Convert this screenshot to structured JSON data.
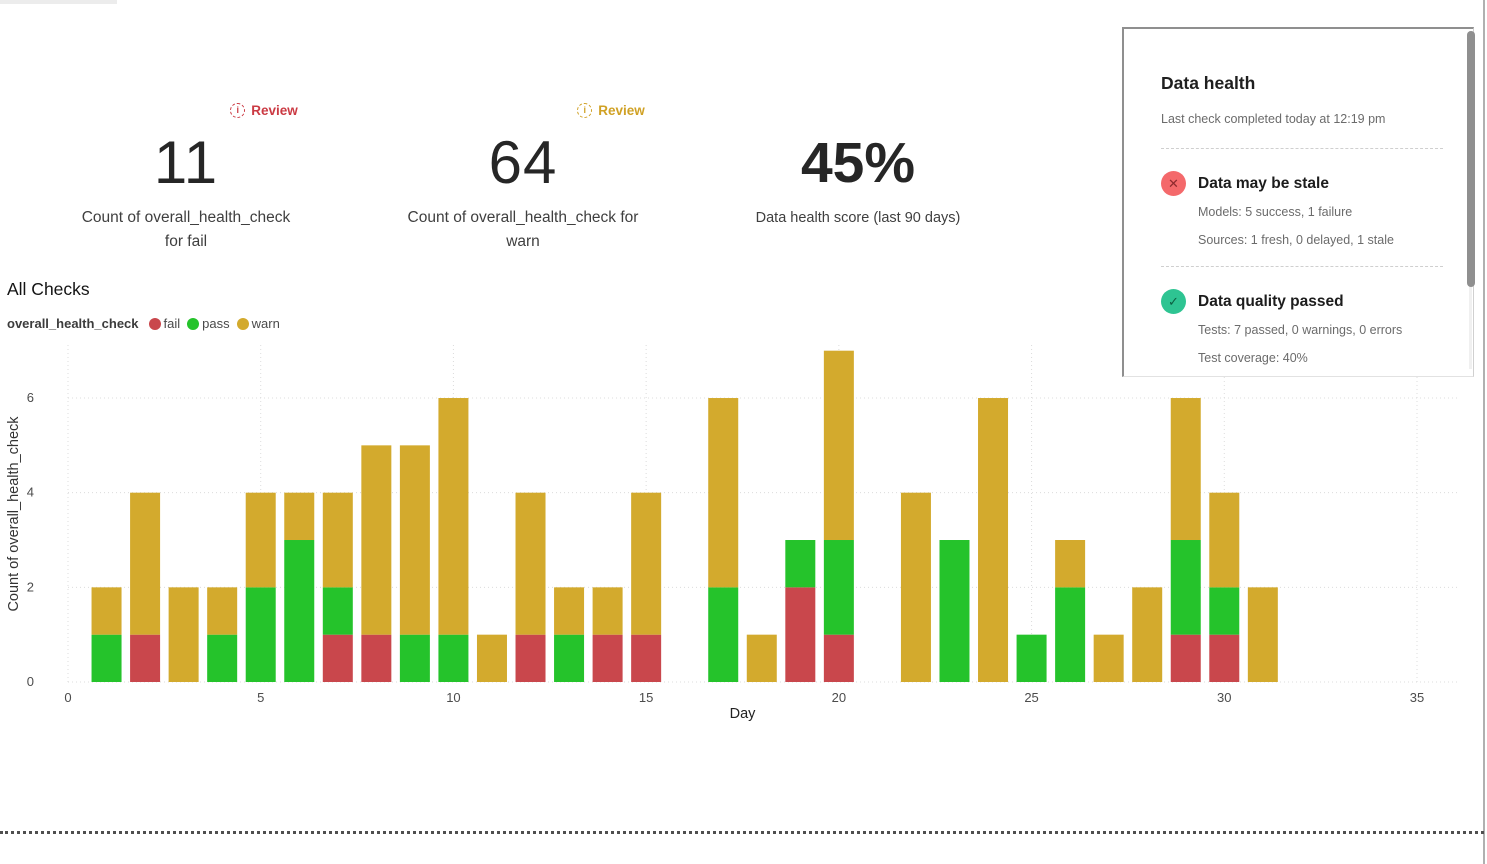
{
  "metrics": [
    {
      "badge": {
        "label": "Review",
        "color": "#cb3a43"
      },
      "value": "11",
      "label_lines": [
        "Count of overall_health_check",
        "for fail"
      ]
    },
    {
      "badge": {
        "label": "Review",
        "color": "#d0a125"
      },
      "value": "64",
      "label_lines": [
        "Count of overall_health_check for",
        "warn"
      ]
    },
    {
      "badge": null,
      "value": "45%",
      "label_lines": [
        "Data health score (last 90 days)"
      ]
    }
  ],
  "section_title": "All Checks",
  "legend": {
    "title": "overall_health_check",
    "items": [
      {
        "label": "fail",
        "color": "#c9474c"
      },
      {
        "label": "pass",
        "color": "#25c32b"
      },
      {
        "label": "warn",
        "color": "#d3aa2d"
      }
    ]
  },
  "chart_data": {
    "type": "bar",
    "stacked": true,
    "title": "All Checks",
    "xlabel": "Day",
    "ylabel": "Count of overall_health_check",
    "xlim": [
      0,
      35
    ],
    "ylim": [
      0,
      7
    ],
    "xticks": [
      0,
      5,
      10,
      15,
      20,
      25,
      30,
      35
    ],
    "yticks": [
      0,
      2,
      4,
      6
    ],
    "grid": "dotted",
    "legend_position": "top-left",
    "series_order": [
      "fail",
      "pass",
      "warn"
    ],
    "colors": {
      "fail": "#c9474c",
      "pass": "#25c32b",
      "warn": "#d3aa2d"
    },
    "bars": [
      {
        "day": 1,
        "fail": 0,
        "pass": 1,
        "warn": 1
      },
      {
        "day": 2,
        "fail": 1,
        "pass": 0,
        "warn": 3
      },
      {
        "day": 3,
        "fail": 0,
        "pass": 0,
        "warn": 2
      },
      {
        "day": 4,
        "fail": 0,
        "pass": 1,
        "warn": 1
      },
      {
        "day": 5,
        "fail": 0,
        "pass": 2,
        "warn": 2
      },
      {
        "day": 6,
        "fail": 0,
        "pass": 3,
        "warn": 1
      },
      {
        "day": 7,
        "fail": 1,
        "pass": 1,
        "warn": 2
      },
      {
        "day": 8,
        "fail": 1,
        "pass": 0,
        "warn": 4
      },
      {
        "day": 9,
        "fail": 0,
        "pass": 1,
        "warn": 4
      },
      {
        "day": 10,
        "fail": 0,
        "pass": 1,
        "warn": 5
      },
      {
        "day": 11,
        "fail": 0,
        "pass": 0,
        "warn": 1
      },
      {
        "day": 12,
        "fail": 1,
        "pass": 0,
        "warn": 3
      },
      {
        "day": 13,
        "fail": 0,
        "pass": 1,
        "warn": 1
      },
      {
        "day": 14,
        "fail": 1,
        "pass": 0,
        "warn": 1
      },
      {
        "day": 15,
        "fail": 1,
        "pass": 0,
        "warn": 3
      },
      {
        "day": 17,
        "fail": 0,
        "pass": 2,
        "warn": 4
      },
      {
        "day": 18,
        "fail": 0,
        "pass": 0,
        "warn": 1
      },
      {
        "day": 19,
        "fail": 2,
        "pass": 1,
        "warn": 0
      },
      {
        "day": 20,
        "fail": 1,
        "pass": 2,
        "warn": 4
      },
      {
        "day": 22,
        "fail": 0,
        "pass": 0,
        "warn": 4
      },
      {
        "day": 23,
        "fail": 0,
        "pass": 3,
        "warn": 0
      },
      {
        "day": 24,
        "fail": 0,
        "pass": 0,
        "warn": 6
      },
      {
        "day": 25,
        "fail": 0,
        "pass": 1,
        "warn": 0
      },
      {
        "day": 26,
        "fail": 0,
        "pass": 2,
        "warn": 1
      },
      {
        "day": 27,
        "fail": 0,
        "pass": 0,
        "warn": 1
      },
      {
        "day": 28,
        "fail": 0,
        "pass": 0,
        "warn": 2
      },
      {
        "day": 29,
        "fail": 1,
        "pass": 2,
        "warn": 3
      },
      {
        "day": 30,
        "fail": 1,
        "pass": 1,
        "warn": 2
      },
      {
        "day": 31,
        "fail": 0,
        "pass": 0,
        "warn": 2
      }
    ]
  },
  "health_panel": {
    "title": "Data health",
    "subtitle": "Last check completed today at 12:19 pm",
    "items": [
      {
        "icon": {
          "glyph": "✕",
          "bg": "#f4696b",
          "fg": "#8d2a2e"
        },
        "title": "Data may be stale",
        "lines": [
          "Models: 5 success, 1 failure",
          "Sources: 1 fresh, 0 delayed, 1 stale"
        ]
      },
      {
        "icon": {
          "glyph": "✓",
          "bg": "#2ec492",
          "fg": "#0c5f41"
        },
        "title": "Data quality passed",
        "lines": [
          "Tests: 7 passed, 0 warnings, 0 errors",
          "Test coverage: 40%"
        ]
      }
    ]
  }
}
